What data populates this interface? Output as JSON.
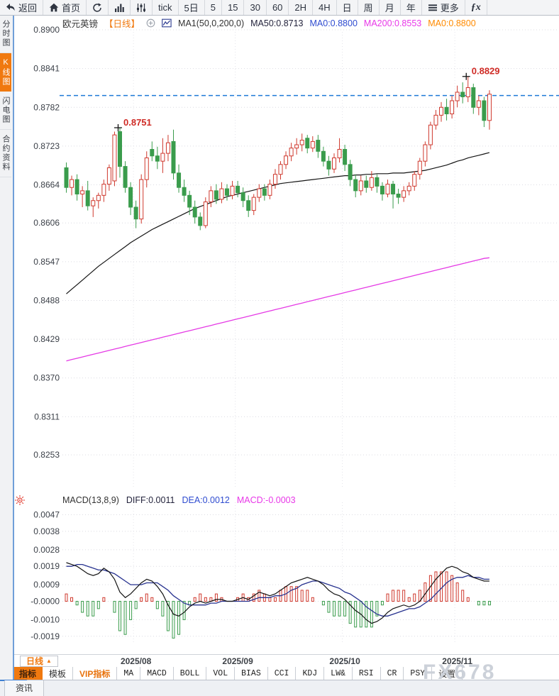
{
  "top_toolbar": {
    "items": [
      {
        "name": "back",
        "icon": "back",
        "label": "返回"
      },
      {
        "name": "home",
        "icon": "home",
        "label": "首页"
      },
      {
        "name": "refresh",
        "icon": "refresh"
      },
      {
        "name": "chart-type",
        "icon": "bars"
      },
      {
        "name": "indicator-panel",
        "icon": "sliders"
      },
      {
        "name": "tick",
        "label": "tick"
      },
      {
        "name": "range-5day",
        "label": "5日"
      },
      {
        "name": "interval-5",
        "label": "5"
      },
      {
        "name": "interval-15",
        "label": "15"
      },
      {
        "name": "interval-30",
        "label": "30"
      },
      {
        "name": "interval-60",
        "label": "60"
      },
      {
        "name": "interval-2h",
        "label": "2H"
      },
      {
        "name": "interval-4h",
        "label": "4H"
      },
      {
        "name": "interval-daily",
        "label": "日"
      },
      {
        "name": "interval-weekly",
        "label": "周"
      },
      {
        "name": "interval-monthly",
        "label": "月"
      },
      {
        "name": "interval-yearly",
        "label": "年"
      },
      {
        "name": "more",
        "icon": "menu",
        "label": "更多"
      },
      {
        "name": "fx",
        "label": "ƒx",
        "fx": true
      }
    ]
  },
  "sidebar": {
    "items": [
      {
        "name": "time-share",
        "label": "分时图",
        "active": false
      },
      {
        "name": "kline",
        "label": "K线图",
        "active": true
      },
      {
        "name": "lightning",
        "label": "闪电图",
        "active": false
      },
      {
        "name": "contract-info",
        "label": "合约资料",
        "active": false
      }
    ]
  },
  "header": {
    "symbol": "欧元英镑",
    "period_tag": "【日线】",
    "ma_settings": "MA1(50,0,200,0)",
    "ma50": "MA50:0.8713",
    "ma0_blue": "MA0:0.8800",
    "ma200": "MA200:0.8553",
    "ma0_orange": "MA0:0.8800"
  },
  "macd_header": {
    "label": "MACD(13,8,9)",
    "diff": "DIFF:0.0011",
    "dea": "DEA:0.0012",
    "macd": "MACD:-0.0003"
  },
  "xaxis": {
    "period_button": "日线"
  },
  "indicator_bar": {
    "tabs": [
      {
        "name": "indicators",
        "label": "指标",
        "style": "active"
      },
      {
        "name": "templates",
        "label": "模板",
        "style": "cn"
      },
      {
        "name": "vip-indicators",
        "label": "VIP指标",
        "style": "vip"
      },
      {
        "name": "ma",
        "label": "MA",
        "style": "mono"
      },
      {
        "name": "macd",
        "label": "MACD",
        "style": "mono"
      },
      {
        "name": "boll",
        "label": "BOLL",
        "style": "mono"
      },
      {
        "name": "vol",
        "label": "VOL",
        "style": "mono"
      },
      {
        "name": "bias",
        "label": "BIAS",
        "style": "mono"
      },
      {
        "name": "cci",
        "label": "CCI",
        "style": "mono"
      },
      {
        "name": "kdj",
        "label": "KDJ",
        "style": "mono"
      },
      {
        "name": "lw",
        "label": "LW&",
        "style": "mono"
      },
      {
        "name": "rsi",
        "label": "RSI",
        "style": "mono"
      },
      {
        "name": "cr",
        "label": "CR",
        "style": "mono"
      },
      {
        "name": "psy",
        "label": "PSY",
        "style": "mono"
      },
      {
        "name": "settings",
        "label": "设置",
        "style": "cn"
      }
    ]
  },
  "news_bar": {
    "tab": "资讯"
  },
  "watermark": "FX678",
  "colors": {
    "bull": "#cf382d",
    "bear": "#3a9c4c",
    "ma50": "#141414",
    "ma200": "#e53ae5",
    "diff_line": "#141414",
    "dea_line": "#27328f",
    "price_line": "#1d7ad6",
    "accent_orange": "#f0790f",
    "annotation_red": "#cf2b25",
    "sidebar_blue": "#6f9fd8"
  },
  "chart_data": {
    "type": "candlestick",
    "title": "欧元英镑 日线 (EUR/GBP daily with MA50/MA200 and MACD(13,8,9))",
    "price_axis_ticks": [
      "0.8900",
      "0.8841",
      "0.8782",
      "0.8723",
      "0.8664",
      "0.8606",
      "0.8547",
      "0.8488",
      "0.8429",
      "0.8370",
      "0.8311",
      "0.8253"
    ],
    "price_range": {
      "top": 0.89,
      "bottom": 0.8253
    },
    "current_price_line": 0.88,
    "annotations": [
      {
        "index": 10,
        "price": 0.8751,
        "label": "0.8751"
      },
      {
        "index": 75,
        "price": 0.8829,
        "label": "0.8829"
      }
    ],
    "months": [
      {
        "label": "2025/08",
        "index": 13
      },
      {
        "label": "2025/09",
        "index": 32
      },
      {
        "label": "2025/10",
        "index": 52
      },
      {
        "label": "2025/11",
        "index": 73
      }
    ],
    "candles": [
      [
        0.869,
        0.8698,
        0.8652,
        0.866
      ],
      [
        0.866,
        0.8678,
        0.8648,
        0.8672
      ],
      [
        0.8672,
        0.868,
        0.864,
        0.865
      ],
      [
        0.865,
        0.8662,
        0.863,
        0.8655
      ],
      [
        0.8655,
        0.867,
        0.8625,
        0.8632
      ],
      [
        0.8632,
        0.8645,
        0.8615,
        0.864
      ],
      [
        0.864,
        0.8652,
        0.8628,
        0.8648
      ],
      [
        0.8648,
        0.8672,
        0.8638,
        0.8665
      ],
      [
        0.8665,
        0.8695,
        0.8655,
        0.869
      ],
      [
        0.867,
        0.8745,
        0.8662,
        0.874
      ],
      [
        0.8745,
        0.8751,
        0.8675,
        0.8692
      ],
      [
        0.8692,
        0.87,
        0.8652,
        0.866
      ],
      [
        0.866,
        0.8668,
        0.8618,
        0.863
      ],
      [
        0.863,
        0.864,
        0.8598,
        0.8612
      ],
      [
        0.8612,
        0.868,
        0.8605,
        0.8672
      ],
      [
        0.8672,
        0.8715,
        0.866,
        0.8705
      ],
      [
        0.8718,
        0.873,
        0.87,
        0.8708
      ],
      [
        0.8708,
        0.8722,
        0.8688,
        0.87
      ],
      [
        0.87,
        0.8735,
        0.8682,
        0.8712
      ],
      [
        0.8712,
        0.874,
        0.87,
        0.8728
      ],
      [
        0.873,
        0.8748,
        0.8672,
        0.8682
      ],
      [
        0.8682,
        0.8695,
        0.8652,
        0.866
      ],
      [
        0.866,
        0.8672,
        0.8638,
        0.8648
      ],
      [
        0.8648,
        0.8655,
        0.8618,
        0.863
      ],
      [
        0.863,
        0.864,
        0.8605,
        0.8615
      ],
      [
        0.8615,
        0.8622,
        0.8595,
        0.8602
      ],
      [
        0.8602,
        0.8645,
        0.8598,
        0.8638
      ],
      [
        0.8638,
        0.8662,
        0.863,
        0.8655
      ],
      [
        0.8655,
        0.8665,
        0.8635,
        0.8642
      ],
      [
        0.8642,
        0.8668,
        0.8636,
        0.8658
      ],
      [
        0.8658,
        0.8665,
        0.864,
        0.8648
      ],
      [
        0.8648,
        0.867,
        0.8642,
        0.8662
      ],
      [
        0.8662,
        0.867,
        0.8645,
        0.8652
      ],
      [
        0.8652,
        0.866,
        0.863,
        0.864
      ],
      [
        0.864,
        0.8648,
        0.8615,
        0.8625
      ],
      [
        0.8625,
        0.865,
        0.8618,
        0.8645
      ],
      [
        0.8645,
        0.8665,
        0.8638,
        0.8658
      ],
      [
        0.8658,
        0.8665,
        0.864,
        0.8648
      ],
      [
        0.8648,
        0.8672,
        0.8642,
        0.8665
      ],
      [
        0.8665,
        0.8688,
        0.8658,
        0.868
      ],
      [
        0.868,
        0.87,
        0.8672,
        0.8695
      ],
      [
        0.8695,
        0.8715,
        0.8688,
        0.8708
      ],
      [
        0.8708,
        0.8728,
        0.87,
        0.872
      ],
      [
        0.872,
        0.8735,
        0.871,
        0.8725
      ],
      [
        0.8725,
        0.8742,
        0.8715,
        0.8732
      ],
      [
        0.8735,
        0.874,
        0.8712,
        0.872
      ],
      [
        0.872,
        0.8738,
        0.8714,
        0.873
      ],
      [
        0.8732,
        0.874,
        0.8705,
        0.8715
      ],
      [
        0.8715,
        0.8722,
        0.8692,
        0.87
      ],
      [
        0.87,
        0.8708,
        0.8678,
        0.8688
      ],
      [
        0.8688,
        0.8712,
        0.8682,
        0.8705
      ],
      [
        0.8705,
        0.8735,
        0.8698,
        0.8718
      ],
      [
        0.8718,
        0.8725,
        0.8685,
        0.8695
      ],
      [
        0.8695,
        0.8702,
        0.8662,
        0.8672
      ],
      [
        0.8672,
        0.868,
        0.8645,
        0.8655
      ],
      [
        0.8655,
        0.8678,
        0.8648,
        0.867
      ],
      [
        0.867,
        0.8678,
        0.8652,
        0.866
      ],
      [
        0.866,
        0.8685,
        0.8655,
        0.8675
      ],
      [
        0.8675,
        0.868,
        0.8652,
        0.8662
      ],
      [
        0.8662,
        0.8668,
        0.864,
        0.865
      ],
      [
        0.865,
        0.8672,
        0.8645,
        0.8665
      ],
      [
        0.8665,
        0.867,
        0.8628,
        0.865
      ],
      [
        0.865,
        0.8658,
        0.8635,
        0.8645
      ],
      [
        0.8645,
        0.8662,
        0.8638,
        0.8655
      ],
      [
        0.8655,
        0.8668,
        0.8648,
        0.8662
      ],
      [
        0.8662,
        0.8685,
        0.8655,
        0.868
      ],
      [
        0.868,
        0.8705,
        0.8672,
        0.87
      ],
      [
        0.87,
        0.873,
        0.8692,
        0.8725
      ],
      [
        0.8725,
        0.876,
        0.8718,
        0.8755
      ],
      [
        0.8755,
        0.8778,
        0.8748,
        0.877
      ],
      [
        0.877,
        0.879,
        0.876,
        0.8782
      ],
      [
        0.8782,
        0.8795,
        0.8762,
        0.8772
      ],
      [
        0.8772,
        0.88,
        0.8765,
        0.8792
      ],
      [
        0.8792,
        0.8815,
        0.8782,
        0.8805
      ],
      [
        0.8805,
        0.882,
        0.8788,
        0.8798
      ],
      [
        0.8798,
        0.8829,
        0.879,
        0.8812
      ],
      [
        0.8812,
        0.8818,
        0.8772,
        0.8782
      ],
      [
        0.8782,
        0.88,
        0.877,
        0.8792
      ],
      [
        0.8792,
        0.8798,
        0.8752,
        0.8762
      ],
      [
        0.8762,
        0.8808,
        0.8748,
        0.8802
      ]
    ],
    "ma50": [
      0.8498,
      0.8505,
      0.8512,
      0.8519,
      0.8526,
      0.8533,
      0.854,
      0.8546,
      0.8552,
      0.8558,
      0.8564,
      0.857,
      0.8576,
      0.8581,
      0.8586,
      0.8591,
      0.8596,
      0.86,
      0.8604,
      0.8608,
      0.8612,
      0.8616,
      0.862,
      0.8624,
      0.8628,
      0.8631,
      0.8634,
      0.8637,
      0.864,
      0.8643,
      0.8646,
      0.8648,
      0.865,
      0.8652,
      0.8654,
      0.8656,
      0.8658,
      0.866,
      0.8662,
      0.8664,
      0.8666,
      0.8667,
      0.8668,
      0.8669,
      0.867,
      0.8671,
      0.8672,
      0.8673,
      0.8674,
      0.8675,
      0.8676,
      0.8677,
      0.8678,
      0.8678,
      0.8679,
      0.8679,
      0.868,
      0.868,
      0.8681,
      0.8681,
      0.8681,
      0.8682,
      0.8682,
      0.8682,
      0.8683,
      0.8684,
      0.8685,
      0.8686,
      0.8688,
      0.869,
      0.8692,
      0.8694,
      0.8697,
      0.87,
      0.8702,
      0.8705,
      0.8707,
      0.8709,
      0.8711,
      0.8713
    ],
    "ma200": [
      0.8396,
      0.8398,
      0.84,
      0.8402,
      0.8404,
      0.8406,
      0.8408,
      0.841,
      0.8412,
      0.8414,
      0.8416,
      0.8418,
      0.842,
      0.8422,
      0.8424,
      0.8426,
      0.8428,
      0.843,
      0.8432,
      0.8434,
      0.8436,
      0.8438,
      0.844,
      0.8442,
      0.8444,
      0.8446,
      0.8448,
      0.845,
      0.8452,
      0.8454,
      0.8456,
      0.8458,
      0.846,
      0.8462,
      0.8464,
      0.8466,
      0.8468,
      0.847,
      0.8472,
      0.8474,
      0.8476,
      0.8478,
      0.848,
      0.8482,
      0.8484,
      0.8486,
      0.8488,
      0.849,
      0.8492,
      0.8494,
      0.8496,
      0.8498,
      0.85,
      0.8502,
      0.8504,
      0.8506,
      0.8508,
      0.851,
      0.8512,
      0.8514,
      0.8516,
      0.8518,
      0.852,
      0.8522,
      0.8524,
      0.8526,
      0.8528,
      0.853,
      0.8532,
      0.8534,
      0.8536,
      0.8538,
      0.854,
      0.8542,
      0.8544,
      0.8546,
      0.8548,
      0.855,
      0.8552,
      0.8553
    ],
    "macd": {
      "axis_ticks": [
        "0.0047",
        "0.0038",
        "0.0028",
        "0.0019",
        "0.0009",
        "-0.0000",
        "-0.0010",
        "-0.0019"
      ],
      "hist_multiplier": 2,
      "diff": [
        0.0021,
        0.002,
        0.0019,
        0.0017,
        0.0015,
        0.0014,
        0.0015,
        0.0018,
        0.0016,
        0.0012,
        0.0005,
        0.0002,
        0.0004,
        0.0007,
        0.001,
        0.0012,
        0.0011,
        0.0008,
        0.0004,
        -0.0002,
        -0.0007,
        -0.0008,
        -0.0006,
        -0.0003,
        -0.0001,
        0.0,
        -0.0001,
        0.0,
        0.0001,
        0.0001,
        0.0,
        0.0,
        0.0001,
        0.0002,
        0.0001,
        0.0003,
        0.0005,
        0.0004,
        0.0003,
        0.0004,
        0.0006,
        0.0008,
        0.001,
        0.0011,
        0.0012,
        0.0013,
        0.0012,
        0.0011,
        0.0009,
        0.0006,
        0.0004,
        0.0003,
        0.0001,
        -0.0002,
        -0.0005,
        -0.0007,
        -0.001,
        -0.0012,
        -0.0011,
        -0.0009,
        -0.0006,
        -0.0004,
        -0.0003,
        -0.0002,
        -0.0003,
        -0.0002,
        0.0,
        0.0004,
        0.0008,
        0.0012,
        0.0015,
        0.0018,
        0.0019,
        0.0018,
        0.0016,
        0.0015,
        0.0013,
        0.0012,
        0.0011,
        0.0011
      ],
      "dea": [
        0.0019,
        0.0019,
        0.002,
        0.002,
        0.0019,
        0.0018,
        0.0017,
        0.0017,
        0.0016,
        0.0015,
        0.0013,
        0.0011,
        0.0009,
        0.0009,
        0.0009,
        0.001,
        0.001,
        0.001,
        0.0008,
        0.0006,
        0.0003,
        0.0001,
        -0.0001,
        -0.0002,
        -0.0002,
        -0.0002,
        -0.0002,
        -0.0001,
        -0.0001,
        0.0,
        0.0,
        0.0,
        0.0,
        0.0,
        0.0,
        0.0001,
        0.0002,
        0.0002,
        0.0002,
        0.0003,
        0.0003,
        0.0004,
        0.0006,
        0.0007,
        0.0009,
        0.001,
        0.0011,
        0.0011,
        0.001,
        0.0009,
        0.0008,
        0.0007,
        0.0005,
        0.0004,
        0.0002,
        0.0,
        -0.0003,
        -0.0005,
        -0.0007,
        -0.0008,
        -0.0008,
        -0.0007,
        -0.0006,
        -0.0005,
        -0.0004,
        -0.0004,
        -0.0003,
        -0.0001,
        0.0001,
        0.0004,
        0.0007,
        0.001,
        0.0012,
        0.0013,
        0.0013,
        0.0014,
        0.0013,
        0.0013,
        0.0012,
        0.0012
      ]
    }
  }
}
